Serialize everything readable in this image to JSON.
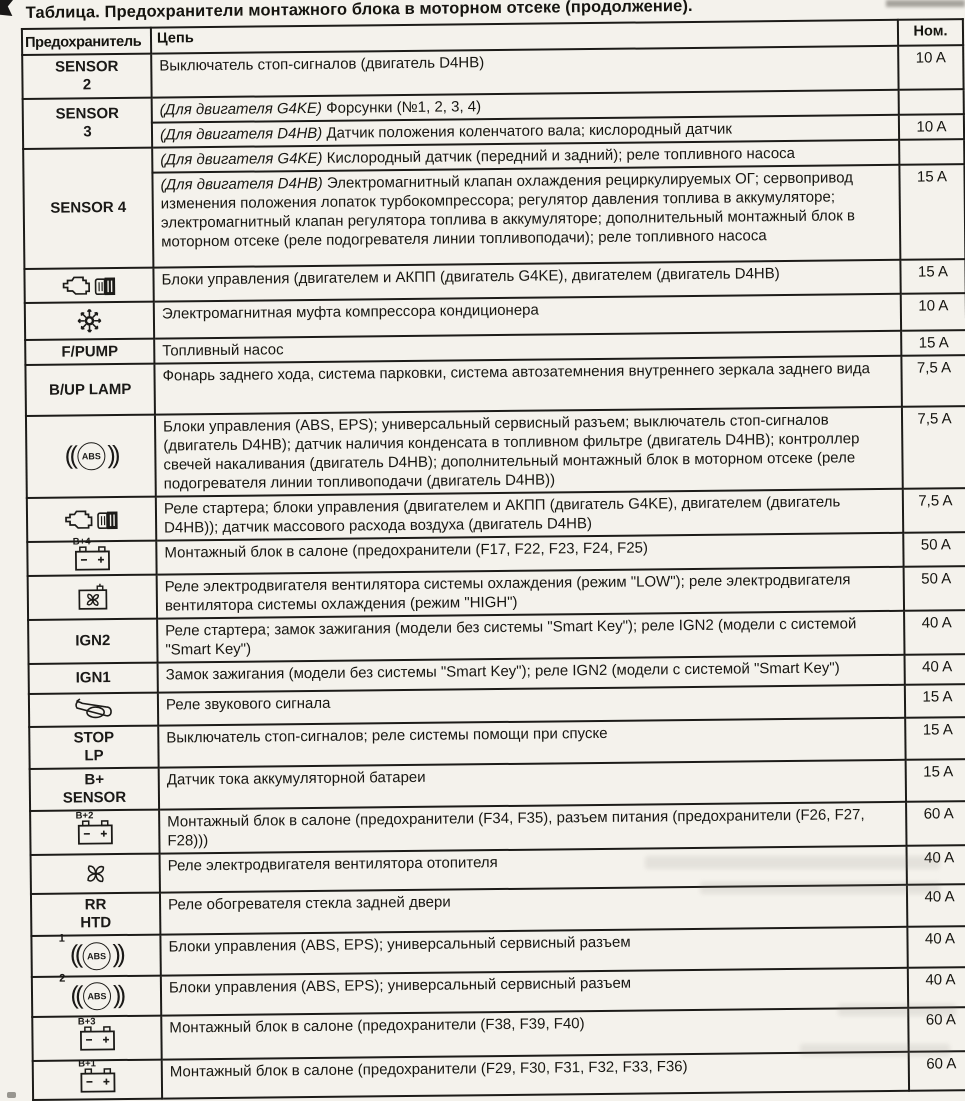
{
  "page": {
    "title": "Таблица. Предохранители монтажного блока в моторном отсеке (продолжение)."
  },
  "colors": {
    "paper": "#f4f2ec",
    "ink": "#1a1917"
  },
  "table": {
    "headers": {
      "fuse": "Предохранитель",
      "circuit": "Цепь",
      "rating": "Ном."
    },
    "groups": [
      {
        "fuse": {
          "kind": "label",
          "lines": [
            "SENSOR",
            "2"
          ]
        },
        "rows": [
          {
            "circuit": [
              {
                "t": "Выключатель стоп-сигналов (двигатель D4HB)"
              }
            ],
            "rating": "10 A"
          }
        ]
      },
      {
        "fuse": {
          "kind": "label",
          "lines": [
            "SENSOR",
            "3"
          ]
        },
        "rows": [
          {
            "circuit": [
              {
                "i": "(Для двигателя G4KE)"
              },
              {
                "t": " Форсунки (№1, 2, 3, 4)"
              }
            ],
            "rating": ""
          },
          {
            "circuit": [
              {
                "i": "(Для двигателя D4HB)"
              },
              {
                "t": " Датчик положения коленчатого вала; кислородный датчик"
              }
            ],
            "rating": "10 A"
          }
        ]
      },
      {
        "fuse": {
          "kind": "label",
          "lines": [
            "SENSOR 4"
          ]
        },
        "rows": [
          {
            "circuit": [
              {
                "i": "(Для двигателя G4KE)"
              },
              {
                "t": " Кислородный датчик (передний и задний); реле топливного насоса"
              }
            ],
            "rating": ""
          },
          {
            "circuit": [
              {
                "i": "(Для двигателя D4HB)"
              },
              {
                "t": " Электромагнитный клапан охлаждения рециркулируемых ОГ; серво­привод изменения положения лопаток турбокомпрессора; регулятор давления топлива в ак­кумуляторе; электромагнитный клапан регулятора топлива в аккумуляторе; дополнительный монтажный блок в моторном отсеке (реле подогревателя линии топливоподачи); реле топливного насоса"
              }
            ],
            "rating": "15 A"
          }
        ]
      },
      {
        "fuse": {
          "kind": "icon",
          "icon": "engine-transmission-icon"
        },
        "rows": [
          {
            "circuit": [
              {
                "t": "Блоки управления (двигателем и АКПП (двигатель G4KE), двигателем (двигатель D4HB)"
              }
            ],
            "rating": "15 A"
          }
        ]
      },
      {
        "fuse": {
          "kind": "icon",
          "icon": "ac-compressor-icon"
        },
        "rows": [
          {
            "circuit": [
              {
                "t": "Электромагнитная муфта компрессора кондиционера"
              }
            ],
            "rating": "10 A"
          }
        ]
      },
      {
        "fuse": {
          "kind": "label",
          "lines": [
            "F/PUMP"
          ]
        },
        "rows": [
          {
            "circuit": [
              {
                "t": "Топливный насос"
              }
            ],
            "rating": "15 A"
          }
        ]
      },
      {
        "fuse": {
          "kind": "label",
          "lines": [
            "B/UP LAMP"
          ]
        },
        "rows": [
          {
            "circuit": [
              {
                "t": "Фонарь заднего хода, система парковки, система автозатемнения внутреннего зеркала заднего вида"
              }
            ],
            "rating": "7,5 A"
          }
        ]
      },
      {
        "fuse": {
          "kind": "icon",
          "icon": "abs-icon"
        },
        "rows": [
          {
            "circuit": [
              {
                "t": "Блоки управления (ABS, EPS); универсальный сервисный разъем; выключатель стоп-сигналов (двигатель D4HB); датчик наличия конденсата в топливном фильтре (двигатель D4HB); контроллер свечей накаливания (двигатель D4HB); дополнительный монтажный блок в моторном отсеке (реле подогревателя линии топливоподачи (двигатель D4HB))"
              }
            ],
            "rating": "7,5 A"
          }
        ]
      },
      {
        "fuse": {
          "kind": "icon",
          "icon": "engine-transmission-icon"
        },
        "rows": [
          {
            "circuit": [
              {
                "t": "Реле стартера; блоки управления (двигателем и АКПП (двигатель G4KE), двигателем (двигатель D4HB)); датчик массового расхода воздуха (двигатель D4HB)"
              }
            ],
            "rating": "7,5 A"
          }
        ]
      },
      {
        "fuse": {
          "kind": "icon",
          "icon": "battery-icon",
          "label": "B+4"
        },
        "rows": [
          {
            "circuit": [
              {
                "t": "Монтажный блок в салоне (предохранители (F17, F22, F23, F24, F25)"
              }
            ],
            "rating": "50 A"
          }
        ]
      },
      {
        "fuse": {
          "kind": "icon",
          "icon": "cooling-fan-relay-icon"
        },
        "rows": [
          {
            "circuit": [
              {
                "t": "Реле электродвигателя вентилятора системы охлаждения (режим \"LOW\"); реле электродви­гателя вентилятора системы охлаждения (режим \"HIGH\")"
              }
            ],
            "rating": "50 A"
          }
        ]
      },
      {
        "fuse": {
          "kind": "label",
          "lines": [
            "IGN2"
          ]
        },
        "rows": [
          {
            "circuit": [
              {
                "t": "Реле стартера; замок зажигания (модели без системы \"Smart Key\"); реле IGN2 (модели с сис­темой \"Smart Key\")"
              }
            ],
            "rating": "40 A"
          }
        ]
      },
      {
        "fuse": {
          "kind": "label",
          "lines": [
            "IGN1"
          ]
        },
        "rows": [
          {
            "circuit": [
              {
                "t": "Замок зажигания (модели без системы \"Smart Key\"); реле IGN2 (модели с системой \"Smart Key\")"
              }
            ],
            "rating": "40 A"
          }
        ]
      },
      {
        "fuse": {
          "kind": "icon",
          "icon": "horn-icon"
        },
        "rows": [
          {
            "circuit": [
              {
                "t": "Реле звукового сигнала"
              }
            ],
            "rating": "15 A"
          }
        ]
      },
      {
        "fuse": {
          "kind": "label",
          "lines": [
            "STOP",
            "LP"
          ]
        },
        "rows": [
          {
            "circuit": [
              {
                "t": "Выключатель стоп-сигналов; реле системы помощи при спуске"
              }
            ],
            "rating": "15 A"
          }
        ]
      },
      {
        "fuse": {
          "kind": "label",
          "lines": [
            "B+",
            "SENSOR"
          ]
        },
        "rows": [
          {
            "circuit": [
              {
                "t": "Датчик тока аккумуляторной батареи"
              }
            ],
            "rating": "15 A"
          }
        ]
      },
      {
        "fuse": {
          "kind": "icon",
          "icon": "battery-icon",
          "label": "B+2"
        },
        "rows": [
          {
            "circuit": [
              {
                "t": "Монтажный блок в салоне (предохранители (F34, F35), разъем питания (предохранители (F26, F27, F28)))"
              }
            ],
            "rating": "60 A"
          }
        ]
      },
      {
        "fuse": {
          "kind": "icon",
          "icon": "heater-fan-icon"
        },
        "rows": [
          {
            "circuit": [
              {
                "t": "Реле электродвигателя вентилятора отопителя"
              }
            ],
            "rating": "40 A"
          }
        ]
      },
      {
        "fuse": {
          "kind": "label",
          "lines": [
            "RR",
            "HTD"
          ]
        },
        "rows": [
          {
            "circuit": [
              {
                "t": "Реле обогревателя стекла задней двери"
              }
            ],
            "rating": "40 A"
          }
        ]
      },
      {
        "fuse": {
          "kind": "icon",
          "icon": "abs-icon",
          "sup": "1"
        },
        "rows": [
          {
            "circuit": [
              {
                "t": "Блоки управления (ABS, EPS); универсальный сервисный разъем"
              }
            ],
            "rating": "40 A"
          }
        ]
      },
      {
        "fuse": {
          "kind": "icon",
          "icon": "abs-icon",
          "sup": "2"
        },
        "rows": [
          {
            "circuit": [
              {
                "t": "Блоки управления (ABS, EPS); универсальный сервисный разъем"
              }
            ],
            "rating": "40 A"
          }
        ]
      },
      {
        "fuse": {
          "kind": "icon",
          "icon": "battery-icon",
          "label": "B+3"
        },
        "rows": [
          {
            "circuit": [
              {
                "t": "Монтажный блок в салоне (предохранители (F38, F39, F40)"
              }
            ],
            "rating": "60 A"
          }
        ]
      },
      {
        "fuse": {
          "kind": "icon",
          "icon": "battery-icon",
          "label": "B+1"
        },
        "rows": [
          {
            "circuit": [
              {
                "t": "Монтажный блок в салоне (предохранители (F29, F30, F31, F32, F33, F36)"
              }
            ],
            "rating": "60 A"
          }
        ]
      }
    ]
  }
}
